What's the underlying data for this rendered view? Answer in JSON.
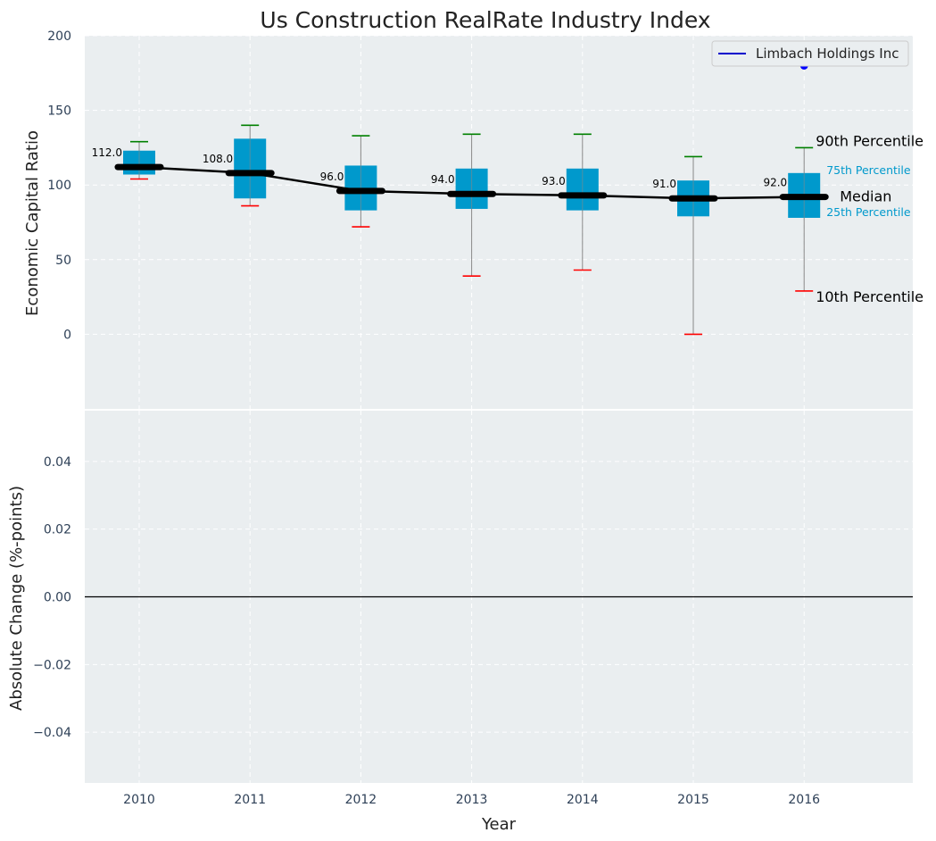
{
  "chart_data": {
    "type": "box",
    "title": "Us Construction RealRate Industry Index",
    "xlabel": "Year",
    "categories": [
      "2010",
      "2011",
      "2012",
      "2013",
      "2014",
      "2015",
      "2016"
    ],
    "top_panel": {
      "ylabel": "Economic Capital Ratio",
      "ylim": [
        -50,
        200
      ],
      "yticks": [
        0,
        50,
        100,
        150,
        200
      ],
      "boxes": [
        {
          "year": "2010",
          "p10": 104,
          "p25": 107,
          "median": 112,
          "p75": 123,
          "p90": 129
        },
        {
          "year": "2011",
          "p10": 86,
          "p25": 91,
          "median": 108,
          "p75": 131,
          "p90": 140
        },
        {
          "year": "2012",
          "p10": 72,
          "p25": 83,
          "median": 96,
          "p75": 113,
          "p90": 133
        },
        {
          "year": "2013",
          "p10": 39,
          "p25": 84,
          "median": 94,
          "p75": 111,
          "p90": 134
        },
        {
          "year": "2014",
          "p10": 43,
          "p25": 83,
          "median": 93,
          "p75": 111,
          "p90": 134
        },
        {
          "year": "2015",
          "p10": 0,
          "p25": 79,
          "median": 91,
          "p75": 103,
          "p90": 119
        },
        {
          "year": "2016",
          "p10": 29,
          "p25": 78,
          "median": 92,
          "p75": 108,
          "p90": 125
        }
      ],
      "median_labels": [
        "112.0",
        "108.0",
        "96.0",
        "94.0",
        "93.0",
        "91.0",
        "92.0"
      ],
      "series": [
        {
          "name": "Limbach Holdings Inc",
          "points": [
            {
              "x": "2016",
              "y": 180
            }
          ],
          "color": "#0000ff"
        }
      ],
      "annotations": {
        "p90": "90th Percentile",
        "p75": "75th Percentile",
        "median": "Median",
        "p25": "25th Percentile",
        "p10": "10th Percentile"
      },
      "legend_position": "top-right"
    },
    "bottom_panel": {
      "ylabel": "Absolute Change (%-points)",
      "ylim": [
        -0.055,
        0.055
      ],
      "yticks": [
        -0.04,
        -0.02,
        0.0,
        0.02,
        0.04
      ],
      "ytick_labels": [
        "−0.04",
        "−0.02",
        "0.00",
        "0.02",
        "0.04"
      ],
      "zero_line": true
    },
    "grid": true,
    "colors": {
      "box": "#0099cc",
      "median": "#000000",
      "p90_cap": "#008000",
      "p10_cap": "#ff0000",
      "whisker": "#888888",
      "background": "#eaeef0",
      "grid": "#ffffff"
    }
  }
}
